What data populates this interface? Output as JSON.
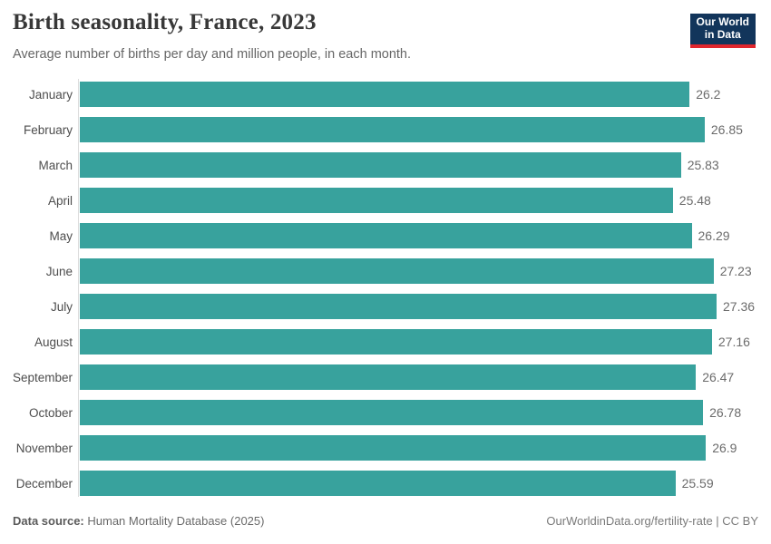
{
  "header": {
    "logo": {
      "line1": "Our World",
      "line2": "in Data",
      "bg_color": "#12355b",
      "accent_color": "#e0262d"
    }
  },
  "chart_data": {
    "type": "bar",
    "orientation": "horizontal",
    "title": "Birth seasonality, France, 2023",
    "subtitle": "Average number of births per day and million people, in each month.",
    "categories": [
      "January",
      "February",
      "March",
      "April",
      "May",
      "June",
      "July",
      "August",
      "September",
      "October",
      "November",
      "December"
    ],
    "values": [
      26.2,
      26.85,
      25.83,
      25.48,
      26.29,
      27.23,
      27.36,
      27.16,
      26.47,
      26.78,
      26.9,
      25.59
    ],
    "value_labels": [
      "26.2",
      "26.85",
      "25.83",
      "25.48",
      "26.29",
      "27.23",
      "27.36",
      "27.16",
      "26.47",
      "26.78",
      "26.9",
      "25.59"
    ],
    "xlabel": "",
    "ylabel": "",
    "xlim": [
      0,
      27.36
    ],
    "grid": false,
    "legend": "none",
    "bar_color": "#38a29d"
  },
  "footer": {
    "source_label": "Data source:",
    "source_text": "Human Mortality Database (2025)",
    "right_text": "OurWorldinData.org/fertility-rate | CC BY"
  }
}
